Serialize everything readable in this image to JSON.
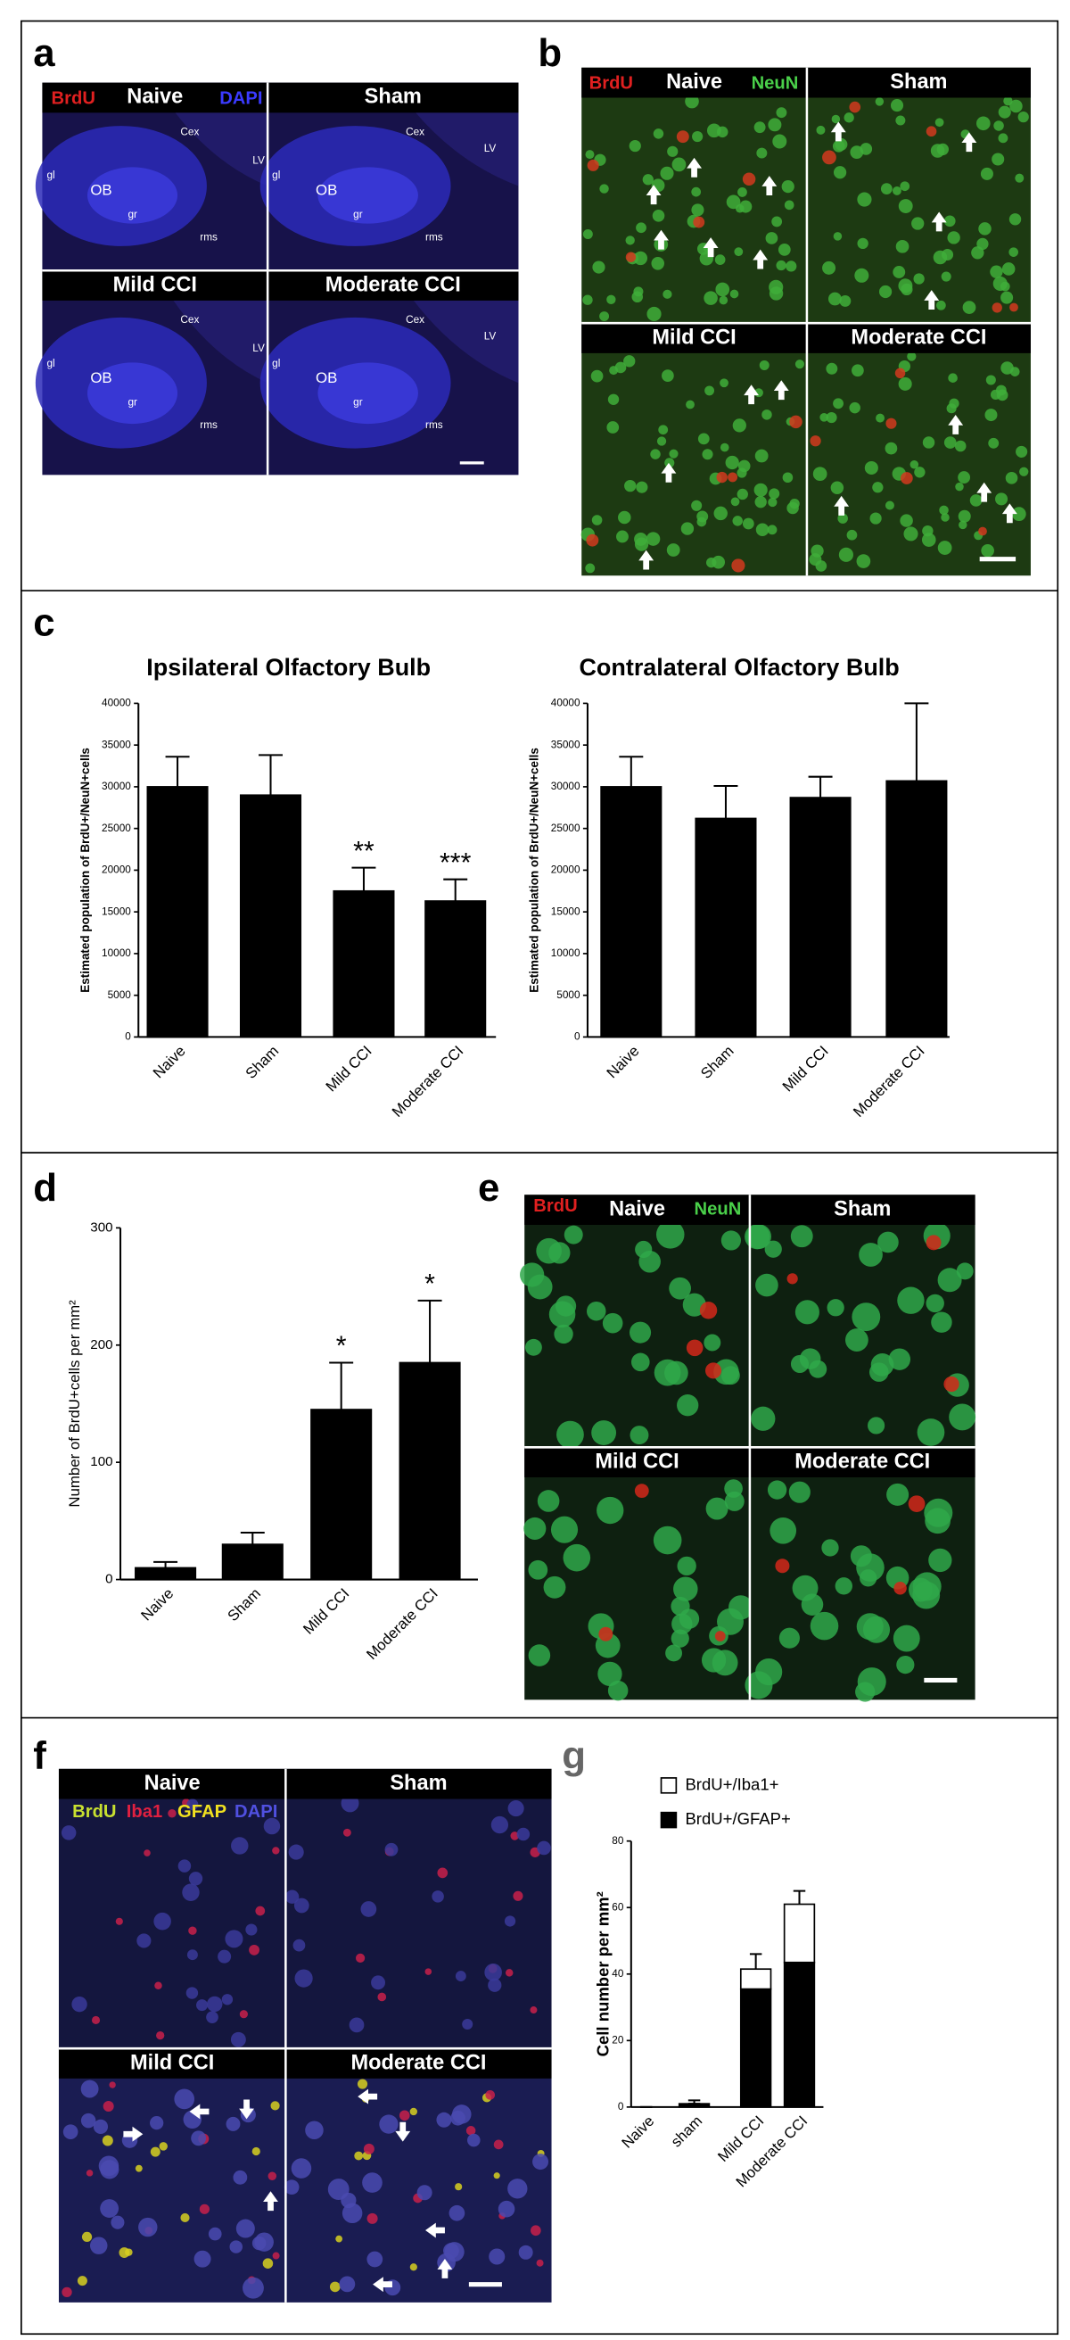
{
  "panels": {
    "a": {
      "label": "a",
      "stains": [
        "BrdU",
        "DAPI"
      ],
      "conditions": [
        "Naive",
        "Sham",
        "Mild CCI",
        "Moderate CCI"
      ],
      "regions": [
        "Cex",
        "LV",
        "OB",
        "gl",
        "gr",
        "rms"
      ]
    },
    "b": {
      "label": "b",
      "stains": [
        "BrdU",
        "NeuN"
      ],
      "conditions": [
        "Naive",
        "Sham",
        "Mild CCI",
        "Moderate CCI"
      ]
    },
    "c": {
      "label": "c"
    },
    "d": {
      "label": "d"
    },
    "e": {
      "label": "e",
      "stains": [
        "BrdU",
        "NeuN"
      ],
      "conditions": [
        "Naive",
        "Sham",
        "Mild CCI",
        "Moderate CCI"
      ]
    },
    "f": {
      "label": "f",
      "stains": [
        "BrdU",
        "Iba1",
        "GFAP",
        "DAPI"
      ],
      "conditions": [
        "Naive",
        "Sham",
        "Mild CCI",
        "Moderate CCI"
      ]
    },
    "g": {
      "label": "g"
    }
  },
  "chart_data": [
    {
      "type": "bar",
      "title": "Ipsilateral Olfactory Bulb",
      "y_label": "Estimated population of BrdU+/NeuN+cells",
      "categories": [
        "Naive",
        "Sham",
        "Mild CCI",
        "Moderate CCI"
      ],
      "series": [
        {
          "color": "#000000",
          "values": [
            30000,
            29000,
            17500,
            16300
          ],
          "errors": [
            3600,
            4800,
            2800,
            2600
          ]
        }
      ],
      "annotations": [
        null,
        null,
        "**",
        "***"
      ],
      "ylim": [
        0,
        40000
      ],
      "yticks": [
        0,
        5000,
        10000,
        15000,
        20000,
        25000,
        30000,
        35000,
        40000
      ]
    },
    {
      "type": "bar",
      "title": "Contralateral Olfactory Bulb",
      "y_label": "Estimated population of BrdU+/NeuN+cells",
      "categories": [
        "Naive",
        "Sham",
        "Mild CCI",
        "Moderate CCI"
      ],
      "series": [
        {
          "color": "#000000",
          "values": [
            30000,
            26200,
            28700,
            30700
          ],
          "errors": [
            3600,
            3900,
            2500,
            9300
          ]
        }
      ],
      "ylim": [
        0,
        40000
      ],
      "yticks": [
        0,
        5000,
        10000,
        15000,
        20000,
        25000,
        30000,
        35000,
        40000
      ]
    },
    {
      "type": "bar",
      "y_label": "Number of BrdU+cells per mm²",
      "categories": [
        "Naive",
        "Sham",
        "Mild CCI",
        "Moderate CCI"
      ],
      "series": [
        {
          "color": "#000000",
          "values": [
            10,
            30,
            145,
            185
          ],
          "errors": [
            5,
            10,
            40,
            53
          ]
        }
      ],
      "annotations": [
        null,
        null,
        "*",
        "*"
      ],
      "ylim": [
        0,
        300
      ],
      "yticks": [
        0,
        100,
        200,
        300
      ]
    },
    {
      "type": "bar",
      "stacked": true,
      "y_label": "Cell number per mm²",
      "legend": "top",
      "categories": [
        "Naive",
        "sham",
        "Mild CCI",
        "Moderate CCI"
      ],
      "series": [
        {
          "name": "BrdU+/GFAP+",
          "color": "#000000",
          "values": [
            0,
            1,
            35.5,
            43.5
          ],
          "errors": [
            0,
            1,
            0,
            4
          ]
        },
        {
          "name": "BrdU+/Iba1+",
          "color": "#ffffff",
          "values": [
            0,
            0,
            6,
            17.5
          ],
          "errors": [
            0,
            0,
            4.5,
            4
          ]
        }
      ],
      "ylim": [
        0,
        80
      ],
      "yticks": [
        0,
        20,
        40,
        60,
        80
      ]
    }
  ]
}
